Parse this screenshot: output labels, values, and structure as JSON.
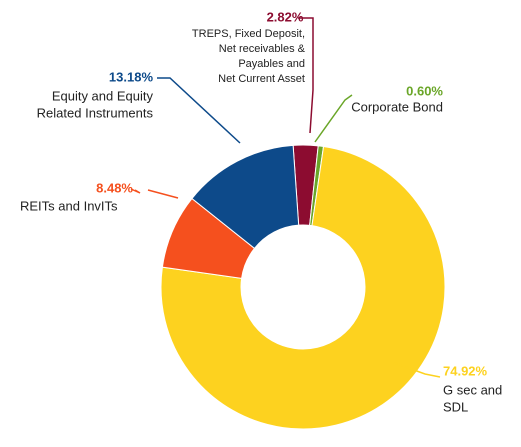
{
  "chart_data": {
    "type": "donut",
    "categories": [
      [
        "TREPS, Fixed Deposit,",
        "Net receivables &",
        "Payables and",
        "Net Current Asset"
      ],
      [
        "Corporate Bond"
      ],
      [
        "G sec and",
        "SDL"
      ],
      [
        "REITs and InvITs"
      ],
      [
        "Equity and Equity",
        "Related Instruments"
      ]
    ],
    "values": [
      2.82,
      0.6,
      74.92,
      8.48,
      13.18
    ],
    "value_labels": [
      "2.82%",
      "0.60%",
      "74.92%",
      "8.48%",
      "13.18%"
    ],
    "colors": [
      "#8c0c30",
      "#6aa628",
      "#fdd21f",
      "#f5501e",
      "#0d4a8a"
    ]
  }
}
